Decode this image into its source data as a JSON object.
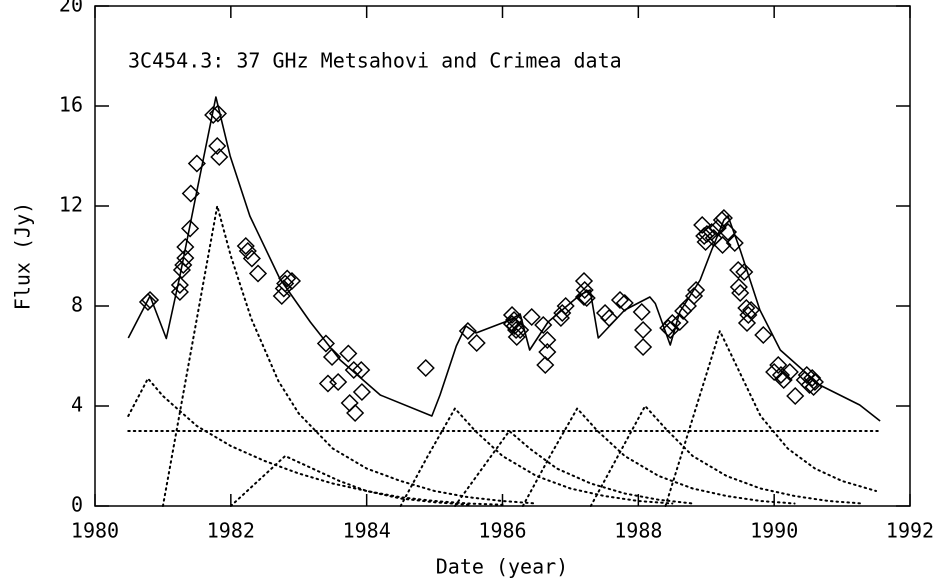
{
  "chart_data": {
    "type": "scatter",
    "title": "3C454.3: 37 GHz Metsahovi and Crimea data",
    "xlabel": "Date (year)",
    "ylabel": "Flux (Jy)",
    "xlim": [
      1980,
      1992
    ],
    "ylim": [
      0,
      20
    ],
    "xticks": [
      1980,
      1982,
      1984,
      1986,
      1988,
      1990,
      1992
    ],
    "yticks": [
      0,
      4,
      8,
      12,
      16,
      20
    ],
    "series": [
      {
        "style": "diamond",
        "color": "#000000",
        "x": [
          1980.81,
          1980.78,
          1981.25,
          1981.25,
          1981.28,
          1981.3,
          1981.33,
          1981.33,
          1981.4,
          1981.41,
          1981.5,
          1981.74,
          1981.81,
          1981.8,
          1981.83,
          1982.22,
          1982.25,
          1982.31,
          1982.4,
          1982.75,
          1982.78,
          1982.83,
          1982.8,
          1982.9,
          1983.4,
          1983.49,
          1983.73,
          1983.58,
          1983.43,
          1983.81,
          1983.92,
          1983.75,
          1983.83,
          1983.93,
          1984.87,
          1985.49,
          1985.62,
          1986.14,
          1986.17,
          1986.18,
          1986.14,
          1986.2,
          1986.21,
          1986.26,
          1986.6,
          1986.66,
          1986.66,
          1986.63,
          1986.43,
          1986.86,
          1986.88,
          1986.93,
          1987.2,
          1987.21,
          1987.2,
          1987.24,
          1987.51,
          1987.57,
          1987.73,
          1987.8,
          1988.05,
          1988.07,
          1988.07,
          1988.44,
          1988.5,
          1988.47,
          1988.66,
          1988.61,
          1988.73,
          1988.82,
          1988.85,
          1988.94,
          1988.97,
          1988.99,
          1989.01,
          1989.08,
          1989.11,
          1989.17,
          1989.23,
          1989.26,
          1989.24,
          1989.32,
          1989.42,
          1989.48,
          1989.47,
          1989.5,
          1989.56,
          1989.59,
          1989.62,
          1989.6,
          1989.66,
          1989.84,
          1990.0,
          1990.06,
          1990.1,
          1990.14,
          1990.23,
          1990.31,
          1990.45,
          1990.48,
          1990.52,
          1990.56,
          1990.6,
          1990.58
        ],
        "values": [
          8.24,
          8.16,
          8.56,
          8.84,
          9.44,
          9.64,
          9.92,
          10.36,
          11.1,
          12.5,
          13.7,
          15.64,
          15.7,
          14.4,
          13.96,
          10.4,
          10.2,
          9.9,
          9.3,
          8.4,
          8.7,
          9.1,
          8.9,
          9.0,
          6.5,
          5.96,
          6.1,
          4.96,
          4.9,
          5.44,
          5.44,
          4.12,
          3.72,
          4.56,
          5.52,
          7.0,
          6.52,
          7.64,
          7.44,
          7.2,
          7.28,
          7.04,
          6.76,
          7.04,
          7.24,
          6.64,
          6.16,
          5.64,
          7.56,
          7.52,
          7.72,
          8.0,
          9.0,
          8.64,
          8.36,
          8.32,
          7.72,
          7.52,
          8.24,
          8.12,
          7.76,
          7.04,
          6.36,
          7.12,
          7.32,
          7.04,
          7.8,
          7.36,
          8.0,
          8.4,
          8.64,
          11.24,
          10.8,
          10.56,
          10.88,
          10.96,
          10.72,
          11.12,
          11.44,
          11.52,
          10.44,
          10.96,
          10.52,
          8.76,
          9.44,
          8.52,
          9.36,
          7.92,
          7.64,
          7.32,
          7.84,
          6.84,
          5.36,
          5.64,
          5.24,
          5.04,
          5.36,
          4.4,
          5.04,
          5.24,
          4.84,
          5.12,
          4.96,
          4.76
        ]
      },
      {
        "style": "solid",
        "color": "#000000",
        "x": [
          1980.49,
          1980.81,
          1981.05,
          1981.25,
          1981.5,
          1981.78,
          1981.99,
          1982.28,
          1982.72,
          1983.17,
          1983.61,
          1984.2,
          1984.96,
          1985.08,
          1985.32,
          1985.46,
          1985.61,
          1986.11,
          1986.26,
          1986.4,
          1986.67,
          1987.14,
          1987.29,
          1987.41,
          1987.8,
          1988.17,
          1988.25,
          1988.47,
          1988.61,
          1988.91,
          1989.08,
          1989.26,
          1989.32,
          1989.5,
          1989.79,
          1990.09,
          1990.67,
          1991.26,
          1991.56
        ],
        "values": [
          6.72,
          8.4,
          6.7,
          9.2,
          12.6,
          16.36,
          14.0,
          11.6,
          9.1,
          7.36,
          5.84,
          4.44,
          3.6,
          4.44,
          6.4,
          7.2,
          6.92,
          7.44,
          7.68,
          6.24,
          7.36,
          8.44,
          8.64,
          6.72,
          7.84,
          8.36,
          8.1,
          6.44,
          7.76,
          9.04,
          10.24,
          11.44,
          11.6,
          10.24,
          7.84,
          6.24,
          4.84,
          4.04,
          3.4
        ]
      },
      {
        "style": "dotted",
        "color": "#000000",
        "x": [
          1980.49,
          1991.56
        ],
        "values": [
          3,
          3
        ]
      },
      {
        "style": "dotted",
        "color": "#000000",
        "x": [
          1980.49,
          1980.78,
          1981.0,
          1981.5,
          1982,
          1982.5,
          1983,
          1983.5,
          1984,
          1984.5,
          1985,
          1985.5,
          1986
        ],
        "values": [
          3.6,
          5.1,
          4.4,
          3.2,
          2.4,
          1.8,
          1.3,
          0.9,
          0.6,
          0.35,
          0.2,
          0.1,
          0.05
        ]
      },
      {
        "style": "dotted",
        "color": "#000000",
        "x": [
          1981.0,
          1981.2,
          1981.5,
          1981.8,
          1982.0,
          1982.3,
          1982.7,
          1983,
          1983.5,
          1984,
          1984.5,
          1985,
          1985.5,
          1986,
          1986.5
        ],
        "values": [
          0,
          3,
          7.5,
          12.0,
          10,
          7.5,
          5,
          3.7,
          2.3,
          1.5,
          1.0,
          0.6,
          0.35,
          0.2,
          0.1
        ]
      },
      {
        "style": "dotted",
        "color": "#000000",
        "x": [
          1982.0,
          1982.4,
          1982.8,
          1983.2,
          1983.6,
          1984,
          1984.5,
          1985,
          1985.5
        ],
        "values": [
          0,
          1.0,
          2.0,
          1.5,
          1.0,
          0.6,
          0.3,
          0.15,
          0.05
        ]
      },
      {
        "style": "dotted",
        "color": "#000000",
        "x": [
          1984.5,
          1984.9,
          1985.3,
          1985.6,
          1986,
          1986.5,
          1987,
          1987.5,
          1988,
          1988.5
        ],
        "values": [
          0,
          2.0,
          3.9,
          3.0,
          2.0,
          1.2,
          0.7,
          0.4,
          0.2,
          0.1
        ]
      },
      {
        "style": "dotted",
        "color": "#000000",
        "x": [
          1985.3,
          1985.7,
          1986.1,
          1986.4,
          1986.8,
          1987.3,
          1987.8,
          1988.3,
          1988.8
        ],
        "values": [
          0,
          1.5,
          3.0,
          2.3,
          1.5,
          0.9,
          0.5,
          0.25,
          0.1
        ]
      },
      {
        "style": "dotted",
        "color": "#000000",
        "x": [
          1986.3,
          1986.7,
          1987.1,
          1987.4,
          1987.8,
          1988.3,
          1988.8,
          1989.3,
          1989.8,
          1990.3
        ],
        "values": [
          0,
          2.0,
          3.9,
          3.0,
          2.0,
          1.2,
          0.7,
          0.4,
          0.2,
          0.1
        ]
      },
      {
        "style": "dotted",
        "color": "#000000",
        "x": [
          1987.3,
          1987.7,
          1988.1,
          1988.4,
          1988.8,
          1989.3,
          1989.8,
          1990.3,
          1990.8,
          1991.3
        ],
        "values": [
          0,
          2,
          4.0,
          3.1,
          2.0,
          1.2,
          0.7,
          0.4,
          0.2,
          0.1
        ]
      },
      {
        "style": "dotted",
        "color": "#000000",
        "x": [
          1988.4,
          1988.8,
          1989.2,
          1989.5,
          1989.8,
          1990.2,
          1990.6,
          1991,
          1991.5
        ],
        "values": [
          0,
          3.5,
          7.0,
          5.3,
          3.6,
          2.3,
          1.5,
          1.0,
          0.6
        ]
      }
    ]
  }
}
